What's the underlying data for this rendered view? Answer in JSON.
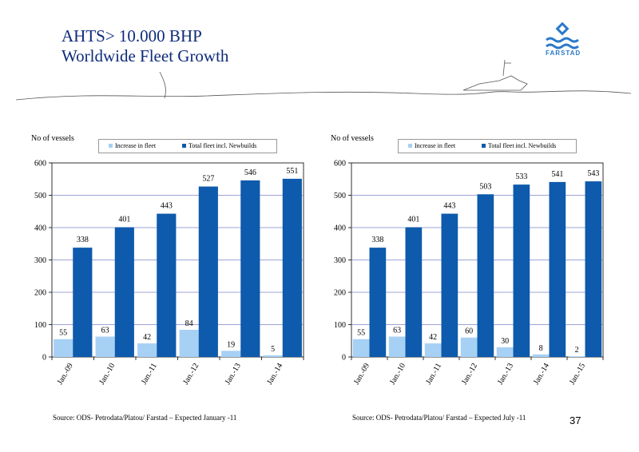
{
  "page": {
    "title_line1": "AHTS> 10.000 BHP",
    "title_line2": "Worldwide Fleet Growth",
    "logo_text": "FARSTAD",
    "page_number": "37"
  },
  "colors": {
    "increase": "#a7d0f5",
    "total": "#0e5aac",
    "gridline": "#7d86c7",
    "plot_bg": "#ffffff"
  },
  "chart_data": [
    {
      "type": "bar",
      "ylabel": "No of vessels",
      "ylim": [
        0,
        600
      ],
      "yticks": [
        0,
        100,
        200,
        300,
        400,
        500,
        600
      ],
      "grid": true,
      "legend_position": "top",
      "categories": [
        "Jan.-09",
        "Jan.-10",
        "Jan.-11",
        "Jan.-12",
        "Jan.-13",
        "Jan.-14"
      ],
      "series": [
        {
          "name": "Increase in fleet",
          "values": [
            55,
            63,
            42,
            84,
            19,
            5
          ]
        },
        {
          "name": "Total fleet incl. Newbuilds",
          "values": [
            338,
            401,
            443,
            527,
            546,
            551
          ]
        }
      ],
      "source": "Source: ODS- Petrodata/Platou/ Farstad – Expected January -11"
    },
    {
      "type": "bar",
      "ylabel": "No of vessels",
      "ylim": [
        0,
        600
      ],
      "yticks": [
        0,
        100,
        200,
        300,
        400,
        500,
        600
      ],
      "grid": true,
      "legend_position": "top",
      "categories": [
        "Jan.-09",
        "Jan.-10",
        "Jan.-11",
        "Jan.-12",
        "Jan.-13",
        "Jan.-14",
        "Jan.-15"
      ],
      "series": [
        {
          "name": "Increase in fleet",
          "values": [
            55,
            63,
            42,
            60,
            30,
            8,
            2
          ]
        },
        {
          "name": "Total fleet incl. Newbuilds",
          "values": [
            338,
            401,
            443,
            503,
            533,
            541,
            543
          ]
        }
      ],
      "source": "Source: ODS- Petrodata/Platou/ Farstad – Expected July -11"
    }
  ]
}
